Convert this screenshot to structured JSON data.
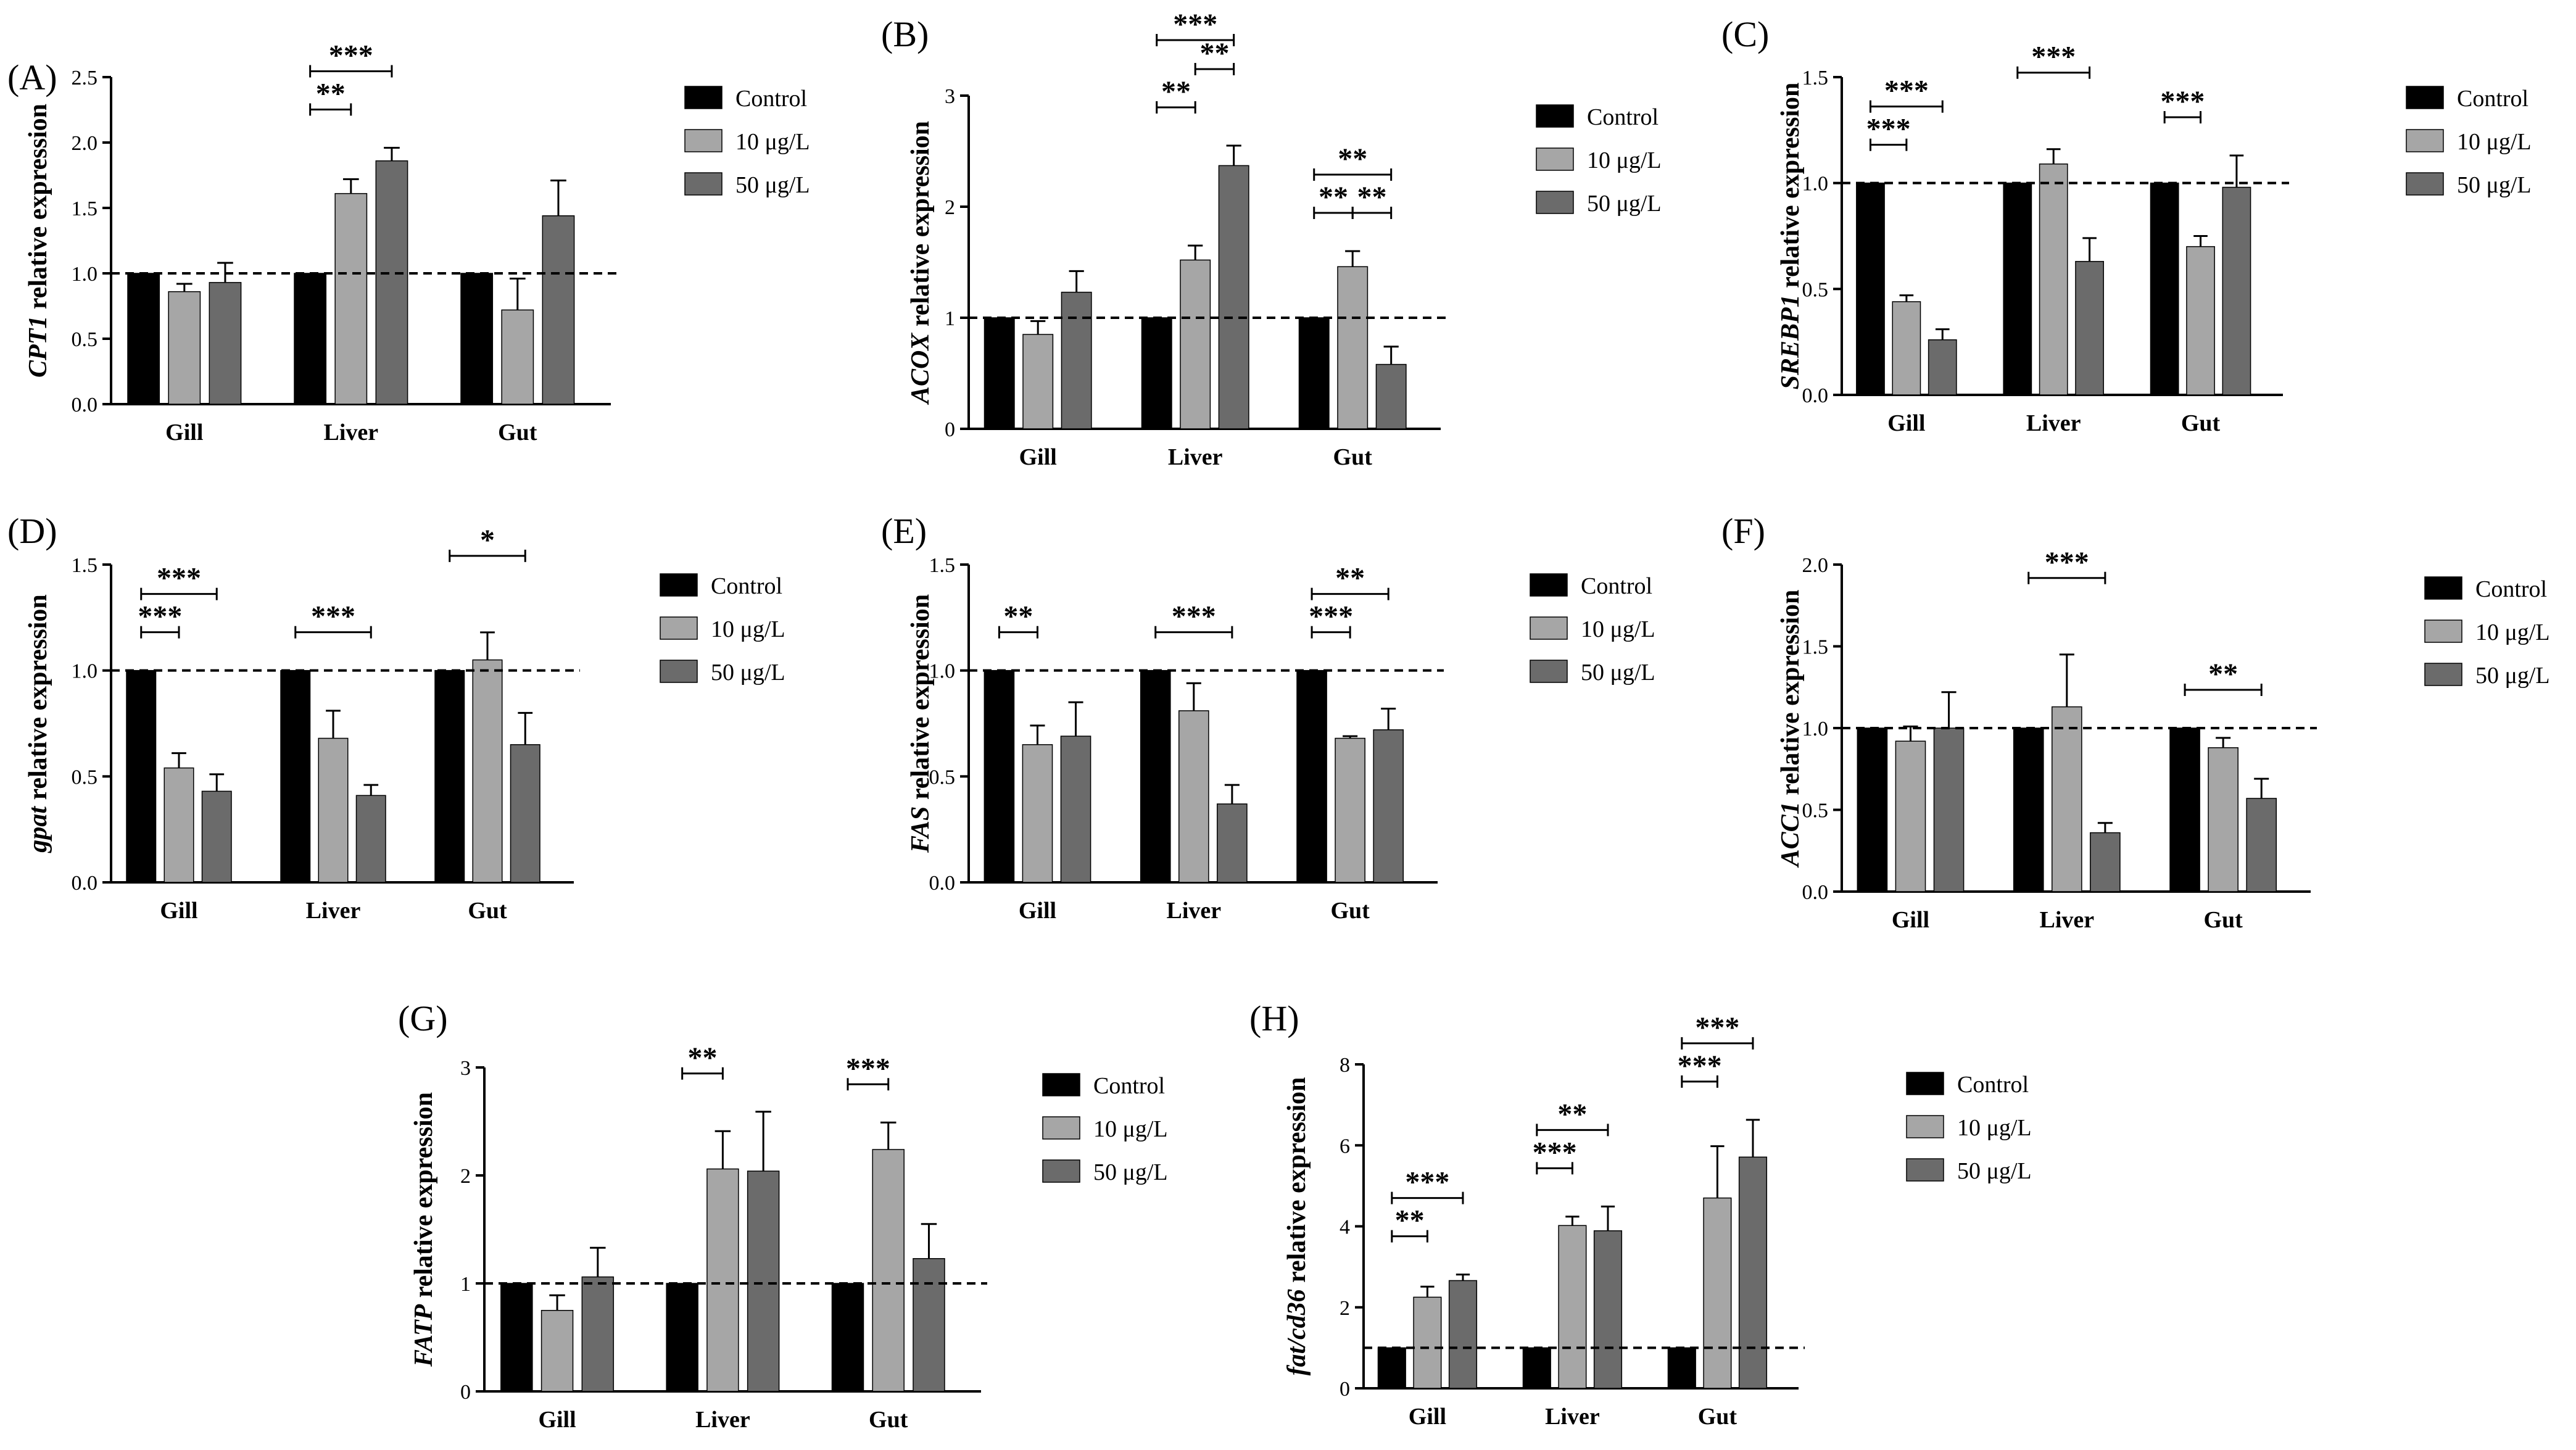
{
  "colors": {
    "control": "#000000",
    "low": "#a6a6a6",
    "high": "#6b6b6b",
    "axis": "#000000"
  },
  "chart_data": [
    {
      "type": "bar",
      "label": "(A)",
      "ylabel": "relative expression",
      "ylabel_gene": "CPT1",
      "categories": [
        "Gill",
        "Liver",
        "Gut"
      ],
      "ylim": [
        0,
        2.5
      ],
      "yticks": [
        "0.0",
        "0.5",
        "1.0",
        "1.5",
        "2.0",
        "2.5"
      ],
      "ytick_values": [
        0,
        0.5,
        1.0,
        1.5,
        2.0,
        2.5
      ],
      "reference_line": 1.0,
      "legend": [
        "Control",
        "10 μg/L",
        "50 μg/L"
      ],
      "series": [
        {
          "name": "Control",
          "values": [
            1.0,
            1.0,
            1.0
          ],
          "errors": [
            0,
            0,
            0
          ]
        },
        {
          "name": "10 μg/L",
          "values": [
            0.86,
            1.61,
            0.72
          ],
          "errors": [
            0.06,
            0.11,
            0.24
          ]
        },
        {
          "name": "50 μg/L",
          "values": [
            0.93,
            1.86,
            1.44
          ],
          "errors": [
            0.15,
            0.1,
            0.27
          ]
        }
      ],
      "significance": [
        {
          "text": "**",
          "from": [
            1,
            0
          ],
          "to": [
            1,
            1
          ],
          "level": 1
        },
        {
          "text": "***",
          "from": [
            1,
            0
          ],
          "to": [
            1,
            2
          ],
          "level": 2
        }
      ]
    },
    {
      "type": "bar",
      "label": "(B)",
      "ylabel": "relative expression",
      "ylabel_gene": "ACOX",
      "categories": [
        "Gill",
        "Liver",
        "Gut"
      ],
      "ylim": [
        0,
        3
      ],
      "yticks": [
        "0",
        "1",
        "2",
        "3"
      ],
      "ytick_values": [
        0,
        1,
        2,
        3
      ],
      "reference_line": 1.0,
      "legend": [
        "Control",
        "10 μg/L",
        "50 μg/L"
      ],
      "series": [
        {
          "name": "Control",
          "values": [
            1.0,
            1.0,
            1.0
          ],
          "errors": [
            0,
            0,
            0
          ]
        },
        {
          "name": "10 μg/L",
          "values": [
            0.85,
            1.52,
            1.46
          ],
          "errors": [
            0.12,
            0.13,
            0.14
          ]
        },
        {
          "name": "50 μg/L",
          "values": [
            1.23,
            2.37,
            0.58
          ],
          "errors": [
            0.19,
            0.18,
            0.16
          ]
        }
      ],
      "significance": [
        {
          "text": "**",
          "from": [
            1,
            0
          ],
          "to": [
            1,
            1
          ],
          "level": 1
        },
        {
          "text": "**",
          "from": [
            1,
            1
          ],
          "to": [
            1,
            2
          ],
          "level": 2
        },
        {
          "text": "***",
          "from": [
            1,
            0
          ],
          "to": [
            1,
            2
          ],
          "level": 3
        },
        {
          "text": "**",
          "from": [
            2,
            0
          ],
          "to": [
            2,
            1
          ],
          "level": 1
        },
        {
          "text": "**",
          "from": [
            2,
            1
          ],
          "to": [
            2,
            2
          ],
          "level": 1
        },
        {
          "text": "**",
          "from": [
            2,
            0
          ],
          "to": [
            2,
            2
          ],
          "level": 2
        }
      ]
    },
    {
      "type": "bar",
      "label": "(C)",
      "ylabel": "relative expression",
      "ylabel_gene": "SREBP1",
      "categories": [
        "Gill",
        "Liver",
        "Gut"
      ],
      "ylim": [
        0,
        1.5
      ],
      "yticks": [
        "0.0",
        "0.5",
        "1.0",
        "1.5"
      ],
      "ytick_values": [
        0,
        0.5,
        1.0,
        1.5
      ],
      "reference_line": 1.0,
      "legend": [
        "Control",
        "10 μg/L",
        "50 μg/L"
      ],
      "series": [
        {
          "name": "Control",
          "values": [
            1.0,
            1.0,
            1.0
          ],
          "errors": [
            0,
            0,
            0
          ]
        },
        {
          "name": "10 μg/L",
          "values": [
            0.44,
            1.09,
            0.7
          ],
          "errors": [
            0.03,
            0.07,
            0.05
          ]
        },
        {
          "name": "50 μg/L",
          "values": [
            0.26,
            0.63,
            0.98
          ],
          "errors": [
            0.05,
            0.11,
            0.15
          ]
        }
      ],
      "significance": [
        {
          "text": "***",
          "from": [
            0,
            0
          ],
          "to": [
            0,
            1
          ],
          "level": 1
        },
        {
          "text": "***",
          "from": [
            0,
            0
          ],
          "to": [
            0,
            2
          ],
          "level": 2
        },
        {
          "text": "***",
          "from": [
            1,
            0
          ],
          "to": [
            1,
            2
          ],
          "level": 2
        },
        {
          "text": "***",
          "from": [
            2,
            0
          ],
          "to": [
            2,
            1
          ],
          "level": 1
        }
      ]
    },
    {
      "type": "bar",
      "label": "(D)",
      "ylabel": "relative expression",
      "ylabel_gene": "gpat",
      "categories": [
        "Gill",
        "Liver",
        "Gut"
      ],
      "ylim": [
        0,
        1.5
      ],
      "yticks": [
        "0.0",
        "0.5",
        "1.0",
        "1.5"
      ],
      "ytick_values": [
        0,
        0.5,
        1.0,
        1.5
      ],
      "reference_line": 1.0,
      "legend": [
        "Control",
        "10 μg/L",
        "50 μg/L"
      ],
      "series": [
        {
          "name": "Control",
          "values": [
            1.0,
            1.0,
            1.0
          ],
          "errors": [
            0,
            0,
            0
          ]
        },
        {
          "name": "10 μg/L",
          "values": [
            0.54,
            0.68,
            1.05
          ],
          "errors": [
            0.07,
            0.13,
            0.13
          ]
        },
        {
          "name": "50 μg/L",
          "values": [
            0.43,
            0.41,
            0.65
          ],
          "errors": [
            0.08,
            0.05,
            0.15
          ]
        }
      ],
      "significance": [
        {
          "text": "***",
          "from": [
            0,
            0
          ],
          "to": [
            0,
            1
          ],
          "level": 1
        },
        {
          "text": "***",
          "from": [
            0,
            0
          ],
          "to": [
            0,
            2
          ],
          "level": 2
        },
        {
          "text": "***",
          "from": [
            1,
            0
          ],
          "to": [
            1,
            2
          ],
          "level": 1
        },
        {
          "text": "*",
          "from": [
            2,
            0
          ],
          "to": [
            2,
            2
          ],
          "level": 2
        }
      ]
    },
    {
      "type": "bar",
      "label": "(E)",
      "ylabel": "relative expression",
      "ylabel_gene": "FAS",
      "categories": [
        "Gill",
        "Liver",
        "Gut"
      ],
      "ylim": [
        0,
        1.5
      ],
      "yticks": [
        "0.0",
        "0.5",
        "1.0",
        "1.5"
      ],
      "ytick_values": [
        0,
        0.5,
        1.0,
        1.5
      ],
      "reference_line": 1.0,
      "legend": [
        "Control",
        "10 μg/L",
        "50 μg/L"
      ],
      "series": [
        {
          "name": "Control",
          "values": [
            1.0,
            1.0,
            1.0
          ],
          "errors": [
            0,
            0,
            0
          ]
        },
        {
          "name": "10 μg/L",
          "values": [
            0.65,
            0.81,
            0.68
          ],
          "errors": [
            0.09,
            0.13,
            0.01
          ]
        },
        {
          "name": "50 μg/L",
          "values": [
            0.69,
            0.37,
            0.72
          ],
          "errors": [
            0.16,
            0.09,
            0.1
          ]
        }
      ],
      "significance": [
        {
          "text": "**",
          "from": [
            0,
            0
          ],
          "to": [
            0,
            1
          ],
          "level": 1
        },
        {
          "text": "***",
          "from": [
            1,
            0
          ],
          "to": [
            1,
            2
          ],
          "level": 1
        },
        {
          "text": "***",
          "from": [
            2,
            0
          ],
          "to": [
            2,
            1
          ],
          "level": 1
        },
        {
          "text": "**",
          "from": [
            2,
            0
          ],
          "to": [
            2,
            2
          ],
          "level": 2
        }
      ]
    },
    {
      "type": "bar",
      "label": "(F)",
      "ylabel": "relative expression",
      "ylabel_gene": "ACC1",
      "categories": [
        "Gill",
        "Liver",
        "Gut"
      ],
      "ylim": [
        0,
        2.0
      ],
      "yticks": [
        "0.0",
        "0.5",
        "1.0",
        "1.5",
        "2.0"
      ],
      "ytick_values": [
        0,
        0.5,
        1.0,
        1.5,
        2.0
      ],
      "reference_line": 1.0,
      "legend": [
        "Control",
        "10 μg/L",
        "50 μg/L"
      ],
      "series": [
        {
          "name": "Control",
          "values": [
            1.0,
            1.0,
            1.0
          ],
          "errors": [
            0,
            0,
            0
          ]
        },
        {
          "name": "10 μg/L",
          "values": [
            0.92,
            1.13,
            0.88
          ],
          "errors": [
            0.09,
            0.32,
            0.06
          ]
        },
        {
          "name": "50 μg/L",
          "values": [
            1.0,
            0.36,
            0.57
          ],
          "errors": [
            0.22,
            0.06,
            0.12
          ]
        }
      ],
      "significance": [
        {
          "text": "***",
          "from": [
            1,
            0
          ],
          "to": [
            1,
            2
          ],
          "level": 2
        },
        {
          "text": "**",
          "from": [
            2,
            0
          ],
          "to": [
            2,
            2
          ],
          "level": 1
        }
      ]
    },
    {
      "type": "bar",
      "label": "(G)",
      "ylabel": "relative expression",
      "ylabel_gene": "FATP",
      "categories": [
        "Gill",
        "Liver",
        "Gut"
      ],
      "ylim": [
        0,
        3
      ],
      "yticks": [
        "0",
        "1",
        "2",
        "3"
      ],
      "ytick_values": [
        0,
        1,
        2,
        3
      ],
      "reference_line": 1.0,
      "legend": [
        "Control",
        "10 μg/L",
        "50 μg/L"
      ],
      "series": [
        {
          "name": "Control",
          "values": [
            1.0,
            1.0,
            1.0
          ],
          "errors": [
            0,
            0,
            0
          ]
        },
        {
          "name": "10 μg/L",
          "values": [
            0.75,
            2.06,
            2.24
          ],
          "errors": [
            0.14,
            0.35,
            0.25
          ]
        },
        {
          "name": "50 μg/L",
          "values": [
            1.06,
            2.04,
            1.23
          ],
          "errors": [
            0.27,
            0.55,
            0.32
          ]
        }
      ],
      "significance": [
        {
          "text": "**",
          "from": [
            1,
            0
          ],
          "to": [
            1,
            1
          ],
          "level": 1
        },
        {
          "text": "***",
          "from": [
            2,
            0
          ],
          "to": [
            2,
            1
          ],
          "level": 1
        }
      ]
    },
    {
      "type": "bar",
      "label": "(H)",
      "ylabel": "relative expression",
      "ylabel_gene": "fat/cd36",
      "categories": [
        "Gill",
        "Liver",
        "Gut"
      ],
      "ylim": [
        0,
        8
      ],
      "yticks": [
        "0",
        "2",
        "4",
        "6",
        "8"
      ],
      "ytick_values": [
        0,
        2,
        4,
        6,
        8
      ],
      "reference_line": 1.0,
      "legend": [
        "Control",
        "10 μg/L",
        "50 μg/L"
      ],
      "series": [
        {
          "name": "Control",
          "values": [
            1.0,
            1.0,
            1.0
          ],
          "errors": [
            0,
            0,
            0
          ]
        },
        {
          "name": "10 μg/L",
          "values": [
            2.25,
            4.02,
            4.7
          ],
          "errors": [
            0.26,
            0.22,
            1.28
          ]
        },
        {
          "name": "50 μg/L",
          "values": [
            2.66,
            3.89,
            5.71
          ],
          "errors": [
            0.15,
            0.6,
            0.92
          ]
        }
      ],
      "significance": [
        {
          "text": "**",
          "from": [
            0,
            0
          ],
          "to": [
            0,
            1
          ],
          "level": 1
        },
        {
          "text": "***",
          "from": [
            0,
            0
          ],
          "to": [
            0,
            2
          ],
          "level": 2
        },
        {
          "text": "***",
          "from": [
            1,
            0
          ],
          "to": [
            1,
            1
          ],
          "level": 1
        },
        {
          "text": "**",
          "from": [
            1,
            0
          ],
          "to": [
            1,
            2
          ],
          "level": 2
        },
        {
          "text": "***",
          "from": [
            2,
            0
          ],
          "to": [
            2,
            1
          ],
          "level": 1
        },
        {
          "text": "***",
          "from": [
            2,
            0
          ],
          "to": [
            2,
            2
          ],
          "level": 2
        }
      ]
    }
  ]
}
